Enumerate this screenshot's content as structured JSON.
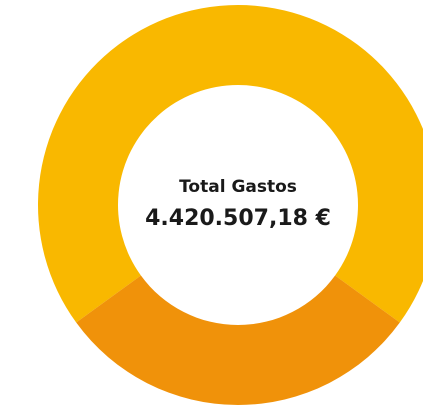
{
  "chart_data": {
    "type": "donut",
    "center_title": "Total Gastos",
    "center_value": "4.420.507,18 €",
    "categories": [
      null,
      null
    ],
    "values": [
      70,
      30
    ],
    "colors": [
      "#f9b800",
      "#f0920a"
    ]
  }
}
